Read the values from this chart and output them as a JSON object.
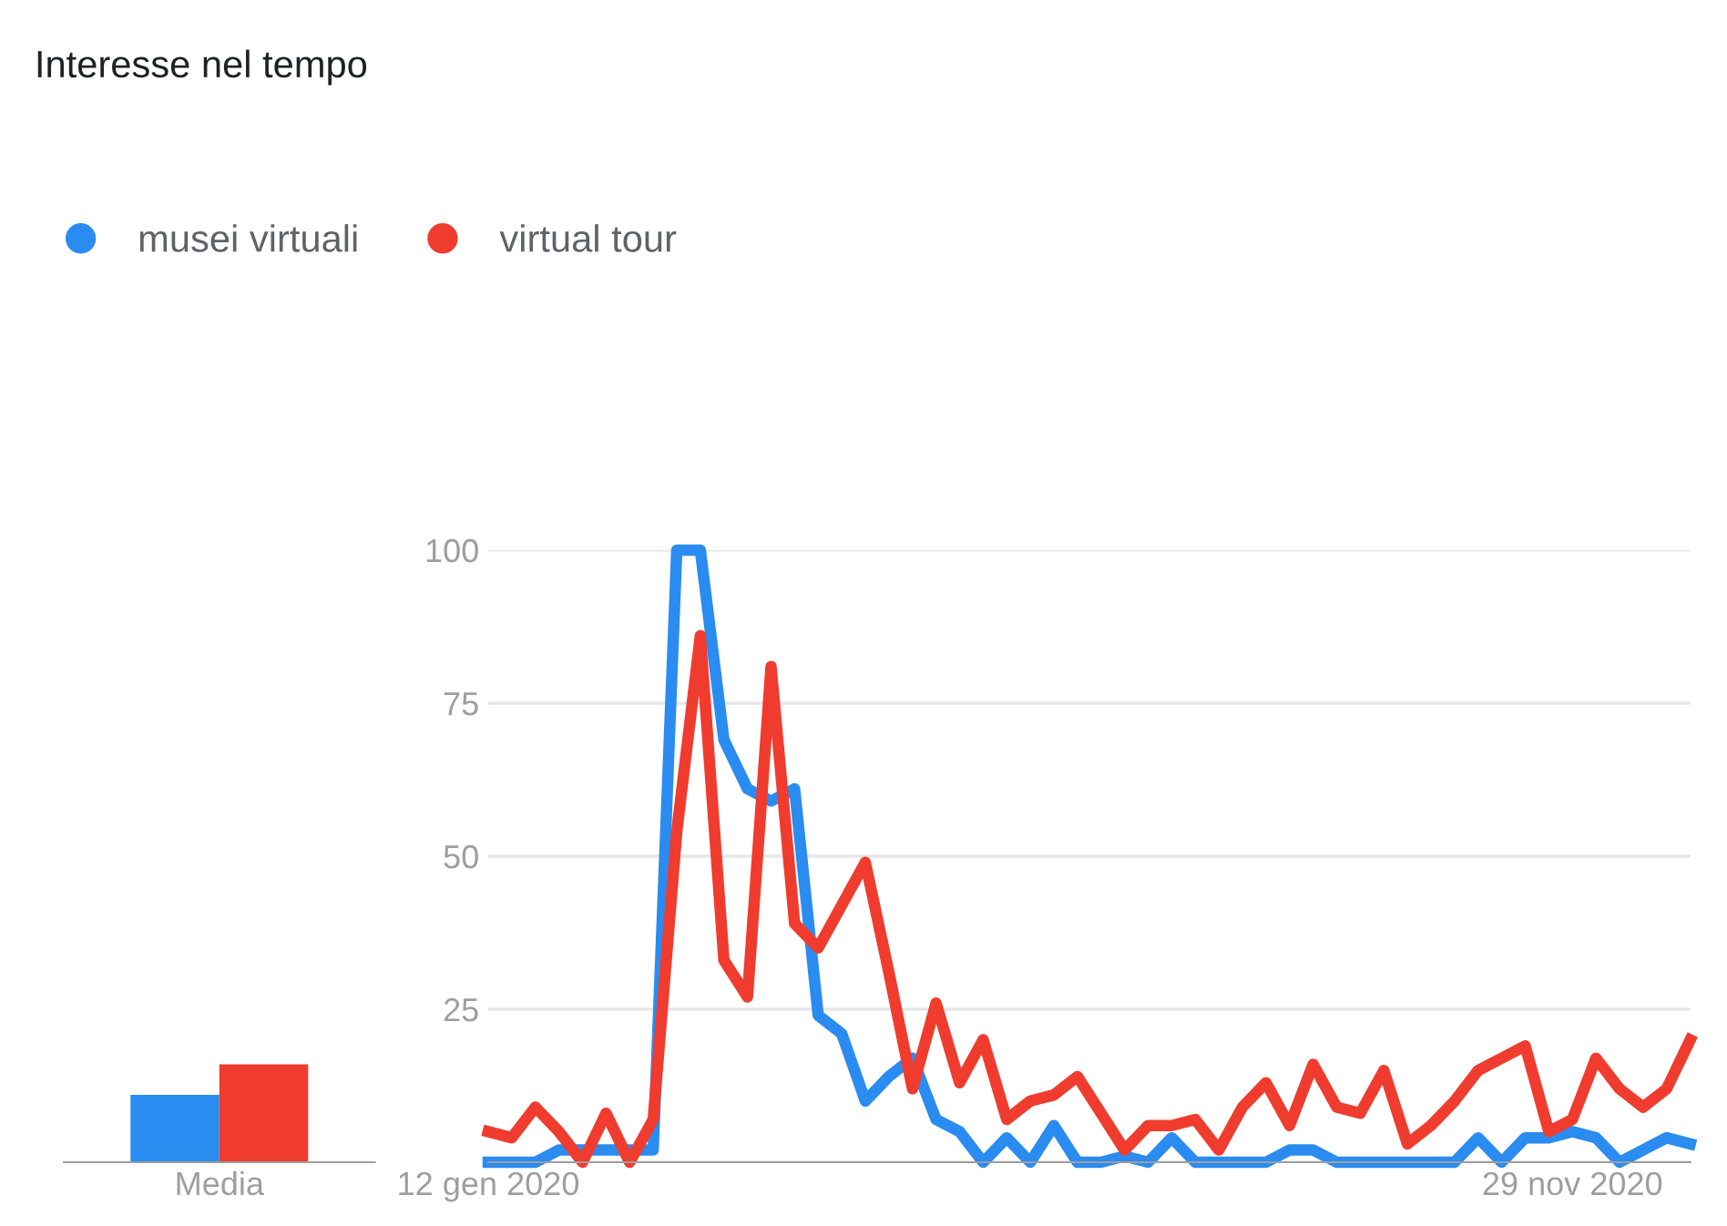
{
  "chart_data": [
    {
      "type": "bar",
      "title": "Interesse nel tempo",
      "categories": [
        "Media"
      ],
      "series": [
        {
          "color": "#2a8cf0",
          "values": [
            11
          ]
        },
        {
          "color": "#f03c2e",
          "values": [
            16
          ]
        }
      ],
      "ylim": [
        0,
        100
      ],
      "tick_labels": "x",
      "grid": false,
      "legend": false
    },
    {
      "type": "line",
      "x": [
        "2020-01-12",
        "2020-01-19",
        "2020-01-26",
        "2020-02-02",
        "2020-02-09",
        "2020-02-16",
        "2020-02-23",
        "2020-03-01",
        "2020-03-08",
        "2020-03-15",
        "2020-03-22",
        "2020-03-29",
        "2020-04-05",
        "2020-04-12",
        "2020-04-19",
        "2020-04-26",
        "2020-05-03",
        "2020-05-10",
        "2020-05-17",
        "2020-05-24",
        "2020-05-31",
        "2020-06-07",
        "2020-06-14",
        "2020-06-21",
        "2020-06-28",
        "2020-07-05",
        "2020-07-12",
        "2020-07-19",
        "2020-07-26",
        "2020-08-02",
        "2020-08-09",
        "2020-08-16",
        "2020-08-23",
        "2020-08-30",
        "2020-09-06",
        "2020-09-13",
        "2020-09-20",
        "2020-09-27",
        "2020-10-04",
        "2020-10-11",
        "2020-10-18",
        "2020-10-25",
        "2020-11-01",
        "2020-11-08",
        "2020-11-15",
        "2020-11-22",
        "2020-11-29",
        "2020-12-06",
        "2020-12-13",
        "2020-12-20",
        "2020-12-27",
        "2021-01-03"
      ],
      "series": [
        {
          "name": "musei virtuali",
          "color": "#2a8cf0",
          "values": [
            0,
            0,
            0,
            2,
            2,
            2,
            2,
            2,
            100,
            100,
            69,
            61,
            59,
            61,
            24,
            21,
            10,
            14,
            17,
            7,
            5,
            0,
            4,
            0,
            6,
            0,
            0,
            1,
            0,
            4,
            0,
            0,
            0,
            0,
            2,
            2,
            0,
            0,
            0,
            0,
            0,
            0,
            4,
            0,
            4,
            4,
            5,
            4,
            0,
            2,
            4,
            3
          ]
        },
        {
          "name": "virtual tour",
          "color": "#f03c2e",
          "values": [
            5,
            4,
            9,
            5,
            0,
            8,
            0,
            7,
            54,
            86,
            33,
            27,
            81,
            39,
            35,
            42,
            49,
            31,
            12,
            26,
            13,
            20,
            7,
            10,
            11,
            14,
            8,
            2,
            6,
            6,
            7,
            2,
            9,
            13,
            6,
            16,
            9,
            8,
            15,
            3,
            6,
            10,
            15,
            17,
            19,
            5,
            7,
            17,
            12,
            9,
            12,
            20
          ]
        }
      ],
      "xlim": [
        "2020-01-12",
        "2021-01-03"
      ],
      "xticks": [
        {
          "value": "2020-01-12",
          "label": "12 gen 2020"
        },
        {
          "value": "2020-11-29",
          "label": "29 nov 2020"
        }
      ],
      "ylim": [
        0,
        100
      ],
      "yticks": [
        {
          "value": 0,
          "label": null
        },
        25,
        50,
        75,
        100
      ],
      "grid": "y",
      "legend": "top left",
      "marker": "none",
      "line_style": "solid"
    }
  ]
}
